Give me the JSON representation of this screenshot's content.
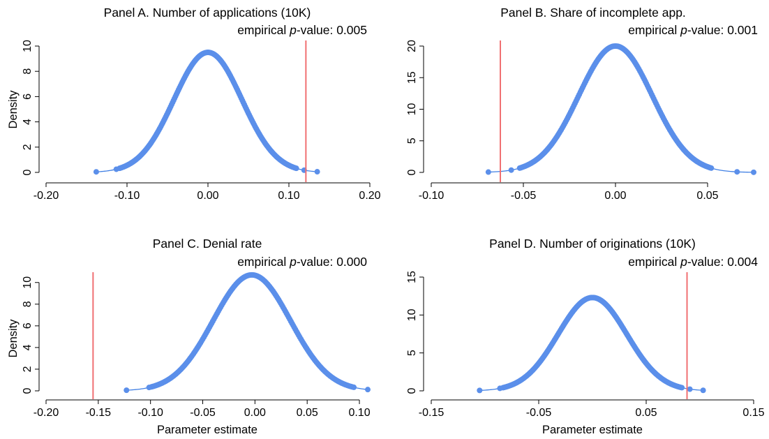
{
  "chart_data": [
    {
      "id": "A",
      "type": "scatter",
      "title": "Panel A. Number of applications (10K)",
      "pvalue_prefix": "empirical ",
      "pvalue_italic": "p",
      "pvalue_suffix": "-value: 0.005",
      "xlabel": "",
      "ylabel": "Density",
      "xlim": [
        -0.2,
        0.2
      ],
      "ylim": [
        0,
        10
      ],
      "xticks": [
        -0.2,
        -0.1,
        0.0,
        0.1,
        0.2
      ],
      "xtick_labels": [
        "-0.20",
        "-0.10",
        "0.00",
        "0.10",
        "0.20"
      ],
      "yticks": [
        0,
        2,
        4,
        6,
        8,
        10
      ],
      "ytick_labels": [
        "0",
        "2",
        "4",
        "6",
        "8",
        "10"
      ],
      "distribution": {
        "mean": 0.0,
        "sd": 0.042,
        "peak": 9.5,
        "min": -0.138,
        "max": 0.135
      },
      "estimate_line": 0.121,
      "grid": false
    },
    {
      "id": "B",
      "type": "scatter",
      "title": "Panel B. Share of incomplete app.",
      "pvalue_prefix": "empirical ",
      "pvalue_italic": "p",
      "pvalue_suffix": "-value: 0.001",
      "xlabel": "",
      "ylabel": "",
      "xlim": [
        -0.1,
        0.075
      ],
      "ylim": [
        0,
        20
      ],
      "xticks": [
        -0.1,
        -0.05,
        0.0,
        0.05
      ],
      "xtick_labels": [
        "-0.10",
        "-0.05",
        "0.00",
        "0.05"
      ],
      "yticks": [
        0,
        5,
        10,
        15,
        20
      ],
      "ytick_labels": [
        "0",
        "5",
        "10",
        "15",
        "20"
      ],
      "distribution": {
        "mean": 0.0,
        "sd": 0.02,
        "peak": 20.0,
        "min": -0.069,
        "max": 0.075
      },
      "estimate_line": -0.0625,
      "grid": false
    },
    {
      "id": "C",
      "type": "scatter",
      "title": "Panel C. Denial rate",
      "pvalue_prefix": "empirical ",
      "pvalue_italic": "p",
      "pvalue_suffix": "-value: 0.000",
      "xlabel": "Parameter estimate",
      "ylabel": "Density",
      "xlim": [
        -0.2,
        0.11
      ],
      "ylim": [
        0,
        10.5
      ],
      "xticks": [
        -0.2,
        -0.15,
        -0.1,
        -0.05,
        0.0,
        0.05,
        0.1
      ],
      "xtick_labels": [
        "-0.20",
        "-0.15",
        "-0.10",
        "-0.05",
        "0.00",
        "0.05",
        "0.10"
      ],
      "yticks": [
        0,
        2,
        4,
        6,
        8,
        10
      ],
      "ytick_labels": [
        "0",
        "2",
        "4",
        "6",
        "8",
        "10"
      ],
      "distribution": {
        "mean": -0.003,
        "sd": 0.037,
        "peak": 10.7,
        "min": -0.123,
        "max": 0.108
      },
      "estimate_line": -0.155,
      "grid": false
    },
    {
      "id": "D",
      "type": "scatter",
      "title": "Panel D. Number of originations (10K)",
      "pvalue_prefix": "empirical ",
      "pvalue_italic": "p",
      "pvalue_suffix": "-value: 0.004",
      "xlabel": "Parameter estimate",
      "ylabel": "",
      "xlim": [
        -0.15,
        0.15
      ],
      "ylim": [
        0,
        15
      ],
      "xticks": [
        -0.15,
        -0.05,
        0.05,
        0.15
      ],
      "xtick_labels": [
        "-0.15",
        "-0.05",
        "0.05",
        "0.15"
      ],
      "yticks": [
        0,
        5,
        10,
        15
      ],
      "ytick_labels": [
        "0",
        "5",
        "10",
        "15"
      ],
      "distribution": {
        "mean": 0.0,
        "sd": 0.032,
        "peak": 12.3,
        "min": -0.105,
        "max": 0.103
      },
      "estimate_line": 0.088,
      "grid": false
    }
  ],
  "colors": {
    "points": "#5b8fea",
    "curve": "#3f7fe4",
    "estimate_line": "#f07072",
    "axis": "#000000"
  }
}
